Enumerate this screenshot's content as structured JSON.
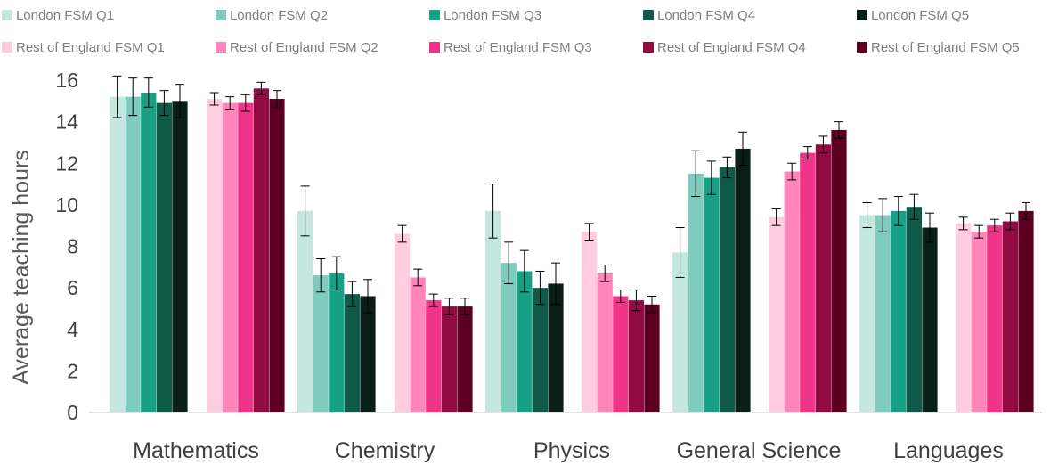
{
  "chart_data": {
    "type": "bar",
    "ylabel": "Average teaching hours",
    "ylim": [
      0,
      16
    ],
    "yticks": [
      0,
      2,
      4,
      6,
      8,
      10,
      12,
      14,
      16
    ],
    "grid": false,
    "legend_position": "top",
    "categories": [
      "Mathematics",
      "Chemistry",
      "Physics",
      "General Science",
      "Languages"
    ],
    "groups": [
      {
        "name": "London",
        "series": [
          {
            "name": "London FSM Q1",
            "color": "#c4e8df",
            "values": [
              15.2,
              9.7,
              9.7,
              7.7,
              9.5
            ],
            "error": [
              1.0,
              1.2,
              1.3,
              1.2,
              0.6
            ]
          },
          {
            "name": "London FSM Q2",
            "color": "#7fcbbd",
            "values": [
              15.2,
              6.6,
              7.2,
              11.5,
              9.5
            ],
            "error": [
              0.9,
              0.8,
              1.0,
              1.1,
              0.8
            ]
          },
          {
            "name": "London FSM Q3",
            "color": "#17a085",
            "values": [
              15.4,
              6.7,
              6.8,
              11.3,
              9.7
            ],
            "error": [
              0.7,
              0.8,
              1.0,
              0.8,
              0.7
            ]
          },
          {
            "name": "London FSM Q4",
            "color": "#0f5a48",
            "values": [
              14.9,
              5.7,
              6.0,
              11.8,
              9.9
            ],
            "error": [
              0.6,
              0.6,
              0.8,
              0.5,
              0.6
            ]
          },
          {
            "name": "London FSM Q5",
            "color": "#0a1e18",
            "values": [
              15.0,
              5.6,
              6.2,
              12.7,
              8.9
            ],
            "error": [
              0.8,
              0.8,
              1.0,
              0.8,
              0.7
            ]
          }
        ]
      },
      {
        "name": "Rest of England",
        "series": [
          {
            "name": "Rest of England FSM Q1",
            "color": "#ffcce0",
            "values": [
              15.1,
              8.6,
              8.7,
              9.4,
              9.1
            ],
            "error": [
              0.3,
              0.4,
              0.4,
              0.4,
              0.3
            ]
          },
          {
            "name": "Rest of England FSM Q2",
            "color": "#ff85ba",
            "values": [
              14.9,
              6.5,
              6.7,
              11.6,
              8.7
            ],
            "error": [
              0.3,
              0.4,
              0.4,
              0.4,
              0.3
            ]
          },
          {
            "name": "Rest of England FSM Q3",
            "color": "#f0348a",
            "values": [
              14.9,
              5.4,
              5.6,
              12.5,
              9.0
            ],
            "error": [
              0.4,
              0.3,
              0.3,
              0.3,
              0.3
            ]
          },
          {
            "name": "Rest of England FSM Q4",
            "color": "#920a42",
            "values": [
              15.6,
              5.1,
              5.4,
              12.9,
              9.2
            ],
            "error": [
              0.3,
              0.4,
              0.5,
              0.4,
              0.4
            ]
          },
          {
            "name": "Rest of England FSM Q5",
            "color": "#5c0022",
            "values": [
              15.1,
              5.1,
              5.2,
              13.6,
              9.7
            ],
            "error": [
              0.4,
              0.4,
              0.4,
              0.4,
              0.4
            ]
          }
        ]
      }
    ]
  }
}
